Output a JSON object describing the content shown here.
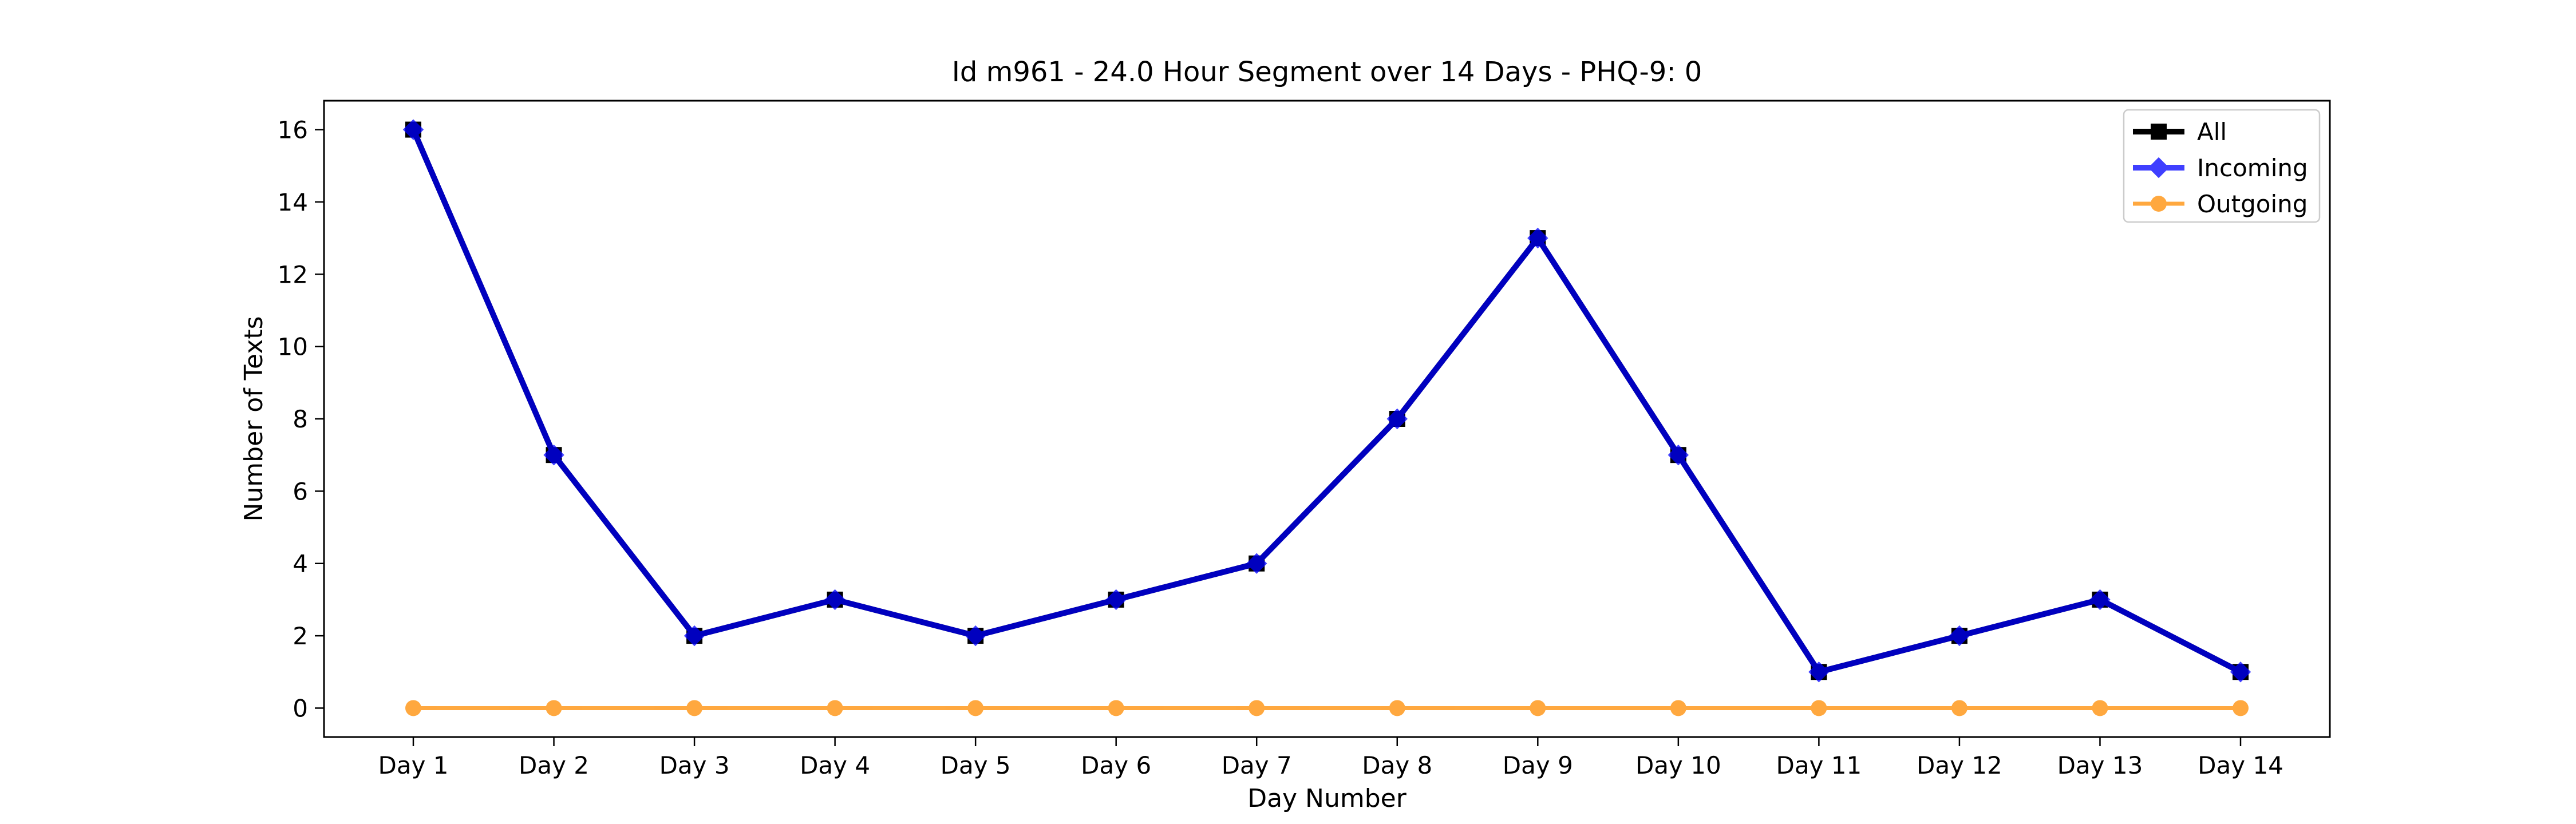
{
  "chart_data": {
    "type": "line",
    "title": "Id m961 - 24.0 Hour Segment over 14 Days - PHQ-9: 0",
    "xlabel": "Day Number",
    "ylabel": "Number of Texts",
    "categories": [
      "Day 1",
      "Day 2",
      "Day 3",
      "Day 4",
      "Day 5",
      "Day 6",
      "Day 7",
      "Day 8",
      "Day 9",
      "Day 10",
      "Day 11",
      "Day 12",
      "Day 13",
      "Day 14"
    ],
    "ylim": [
      -0.8,
      16.8
    ],
    "yticks": [
      0,
      2,
      4,
      6,
      8,
      10,
      12,
      14,
      16
    ],
    "grid": false,
    "legend_position": "top-right",
    "series": [
      {
        "name": "All",
        "color": "#000000",
        "marker": "square",
        "values": [
          16,
          7,
          2,
          3,
          2,
          3,
          4,
          8,
          13,
          7,
          1,
          2,
          3,
          1
        ]
      },
      {
        "name": "Incoming",
        "color": "#0000ff",
        "marker": "diamond",
        "values": [
          16,
          7,
          2,
          3,
          2,
          3,
          4,
          8,
          13,
          7,
          1,
          2,
          3,
          1
        ]
      },
      {
        "name": "Outgoing",
        "color": "#ff8c00",
        "marker": "circle",
        "values": [
          0,
          0,
          0,
          0,
          0,
          0,
          0,
          0,
          0,
          0,
          0,
          0,
          0,
          0
        ]
      }
    ]
  }
}
